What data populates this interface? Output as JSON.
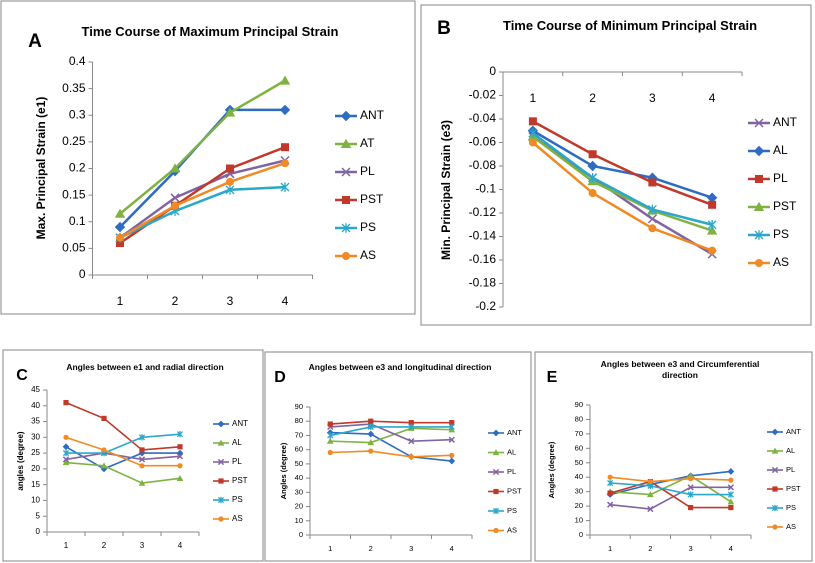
{
  "chart_data": [
    {
      "type": "line",
      "panel_label": "A",
      "title": "Time Course of Maximum Principal Strain",
      "ylabel": "Max. Principal Strain (e1)",
      "categories": [
        "1",
        "2",
        "3",
        "4"
      ],
      "ylim": [
        0,
        0.4
      ],
      "yticks": [
        0,
        0.05,
        0.1,
        0.15,
        0.2,
        0.25,
        0.3,
        0.35,
        0.4
      ],
      "series": [
        {
          "name": "ANT",
          "color": "#2e6bc2",
          "marker": "diamond",
          "values": [
            0.09,
            0.195,
            0.31,
            0.31
          ]
        },
        {
          "name": "AT",
          "color": "#7fb241",
          "marker": "triangle",
          "values": [
            0.115,
            0.2,
            0.305,
            0.365
          ]
        },
        {
          "name": "PL",
          "color": "#8064a2",
          "marker": "x",
          "values": [
            0.07,
            0.145,
            0.19,
            0.215
          ]
        },
        {
          "name": "PST",
          "color": "#c0392b",
          "marker": "square",
          "values": [
            0.06,
            0.13,
            0.2,
            0.24
          ]
        },
        {
          "name": "PS",
          "color": "#2aa7c9",
          "marker": "star",
          "values": [
            0.07,
            0.12,
            0.16,
            0.165
          ]
        },
        {
          "name": "AS",
          "color": "#f08a24",
          "marker": "circle",
          "values": [
            0.07,
            0.13,
            0.175,
            0.21
          ]
        }
      ]
    },
    {
      "type": "line",
      "panel_label": "B",
      "title": "Time Course of Minimum Principal Strain",
      "ylabel": "Min. Principal Strain (e3)",
      "categories": [
        "1",
        "2",
        "3",
        "4"
      ],
      "ylim": [
        -0.2,
        0
      ],
      "yticks": [
        0,
        -0.02,
        -0.04,
        -0.06,
        -0.08,
        -0.1,
        -0.12,
        -0.14,
        -0.16,
        -0.18,
        -0.2
      ],
      "series": [
        {
          "name": "ANT",
          "color": "#8064a2",
          "marker": "x",
          "values": [
            -0.055,
            -0.09,
            -0.125,
            -0.155
          ]
        },
        {
          "name": "AL",
          "color": "#2e6bc2",
          "marker": "diamond",
          "values": [
            -0.05,
            -0.08,
            -0.09,
            -0.107
          ]
        },
        {
          "name": "PL",
          "color": "#c0392b",
          "marker": "square",
          "values": [
            -0.042,
            -0.07,
            -0.094,
            -0.113
          ]
        },
        {
          "name": "PST",
          "color": "#7fb241",
          "marker": "triangle",
          "values": [
            -0.055,
            -0.093,
            -0.118,
            -0.135
          ]
        },
        {
          "name": "PS",
          "color": "#2aa7c9",
          "marker": "star",
          "values": [
            -0.052,
            -0.09,
            -0.117,
            -0.13
          ]
        },
        {
          "name": "AS",
          "color": "#f08a24",
          "marker": "circle",
          "values": [
            -0.06,
            -0.103,
            -0.133,
            -0.152
          ]
        }
      ]
    },
    {
      "type": "line",
      "panel_label": "C",
      "title": "Angles between e1 and radial direction",
      "ylabel": "angles (degree)",
      "categories": [
        "1",
        "2",
        "3",
        "4"
      ],
      "ylim": [
        0,
        45
      ],
      "yticks": [
        0,
        5,
        10,
        15,
        20,
        25,
        30,
        35,
        40,
        45
      ],
      "series": [
        {
          "name": "ANT",
          "color": "#2e6bc2",
          "marker": "diamond",
          "values": [
            27,
            20,
            25,
            25
          ]
        },
        {
          "name": "AL",
          "color": "#7fb241",
          "marker": "triangle",
          "values": [
            22,
            21,
            15.5,
            17
          ]
        },
        {
          "name": "PL",
          "color": "#8064a2",
          "marker": "x",
          "values": [
            23,
            25,
            23,
            24
          ]
        },
        {
          "name": "PST",
          "color": "#c0392b",
          "marker": "square",
          "values": [
            41,
            36,
            26,
            27
          ]
        },
        {
          "name": "PS",
          "color": "#2aa7c9",
          "marker": "star",
          "values": [
            25,
            25,
            30,
            31
          ]
        },
        {
          "name": "AS",
          "color": "#f08a24",
          "marker": "circle",
          "values": [
            30,
            26,
            21,
            21
          ]
        }
      ]
    },
    {
      "type": "line",
      "panel_label": "D",
      "title": "Angles between e3 and longitudinal direction",
      "ylabel": "Angles (degree)",
      "categories": [
        "1",
        "2",
        "3",
        "4"
      ],
      "ylim": [
        0,
        90
      ],
      "yticks": [
        0,
        10,
        20,
        30,
        40,
        50,
        60,
        70,
        80,
        90
      ],
      "series": [
        {
          "name": "ANT",
          "color": "#2e6bc2",
          "marker": "diamond",
          "values": [
            72,
            71,
            55,
            52
          ]
        },
        {
          "name": "AL",
          "color": "#7fb241",
          "marker": "triangle",
          "values": [
            66,
            65,
            75,
            74
          ]
        },
        {
          "name": "PL",
          "color": "#8064a2",
          "marker": "x",
          "values": [
            76,
            78,
            66,
            67
          ]
        },
        {
          "name": "PST",
          "color": "#c0392b",
          "marker": "square",
          "values": [
            78,
            80,
            79,
            79
          ]
        },
        {
          "name": "PS",
          "color": "#2aa7c9",
          "marker": "star",
          "values": [
            70,
            76,
            76,
            76
          ]
        },
        {
          "name": "AS",
          "color": "#f08a24",
          "marker": "circle",
          "values": [
            58,
            59,
            55,
            56
          ]
        }
      ]
    },
    {
      "type": "line",
      "panel_label": "E",
      "title": "Angles between e3 and Circumferential direction",
      "ylabel": "Angles (degree)",
      "categories": [
        "1",
        "2",
        "3",
        "4"
      ],
      "ylim": [
        0,
        90
      ],
      "yticks": [
        0,
        10,
        20,
        30,
        40,
        50,
        60,
        70,
        80,
        90
      ],
      "series": [
        {
          "name": "ANT",
          "color": "#2e6bc2",
          "marker": "diamond",
          "values": [
            28,
            35,
            41,
            44
          ]
        },
        {
          "name": "AL",
          "color": "#7fb241",
          "marker": "triangle",
          "values": [
            30,
            28,
            41,
            23
          ]
        },
        {
          "name": "PL",
          "color": "#8064a2",
          "marker": "x",
          "values": [
            21,
            18,
            33,
            33
          ]
        },
        {
          "name": "PST",
          "color": "#c0392b",
          "marker": "square",
          "values": [
            29,
            37,
            19,
            19
          ]
        },
        {
          "name": "PS",
          "color": "#2aa7c9",
          "marker": "star",
          "values": [
            36,
            34,
            28,
            28
          ]
        },
        {
          "name": "AS",
          "color": "#f08a24",
          "marker": "circle",
          "values": [
            40,
            37,
            39,
            38
          ]
        }
      ]
    }
  ]
}
